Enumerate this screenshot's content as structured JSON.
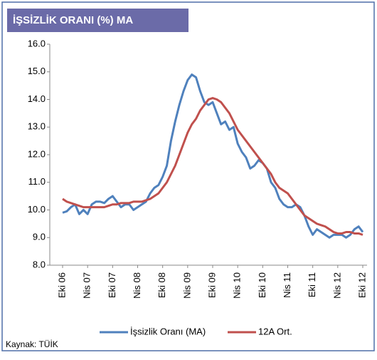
{
  "chart_data": {
    "type": "line",
    "title": "İŞSİZLİK ORANI (%) MA",
    "source": "Kaynak: TÜİK",
    "categories": [
      "Eki 06",
      null,
      null,
      null,
      null,
      null,
      "Nis 07",
      null,
      null,
      null,
      null,
      null,
      "Eki 07",
      null,
      null,
      null,
      null,
      null,
      "Nis 08",
      null,
      null,
      null,
      null,
      null,
      "Eki 08",
      null,
      null,
      null,
      null,
      null,
      "Nis 09",
      null,
      null,
      null,
      null,
      null,
      "Eki 09",
      null,
      null,
      null,
      null,
      null,
      "Nis 10",
      null,
      null,
      null,
      null,
      null,
      "Eki 10",
      null,
      null,
      null,
      null,
      null,
      "Nis 11",
      null,
      null,
      null,
      null,
      null,
      "Eki 11",
      null,
      null,
      null,
      null,
      null,
      "Nis 12",
      null,
      null,
      null,
      null,
      null,
      "Eki 12"
    ],
    "series": [
      {
        "name": "İşsizlik Oranı (MA)",
        "color": "#4f81bd",
        "values": [
          9.9,
          9.95,
          10.1,
          10.2,
          9.85,
          10.0,
          9.85,
          10.2,
          10.3,
          10.3,
          10.25,
          10.4,
          10.5,
          10.3,
          10.1,
          10.2,
          10.2,
          10.0,
          10.1,
          10.2,
          10.3,
          10.6,
          10.8,
          10.9,
          11.2,
          11.6,
          12.5,
          13.2,
          13.8,
          14.3,
          14.7,
          14.9,
          14.8,
          14.3,
          13.9,
          13.8,
          13.9,
          13.5,
          13.1,
          13.2,
          12.9,
          13.0,
          12.4,
          12.1,
          11.9,
          11.5,
          11.6,
          11.8,
          11.7,
          11.5,
          11.0,
          10.8,
          10.4,
          10.2,
          10.1,
          10.1,
          10.2,
          10.1,
          9.8,
          9.4,
          9.1,
          9.3,
          9.2,
          9.1,
          9.0,
          9.1,
          9.1,
          9.1,
          9.0,
          9.1,
          9.3,
          9.4,
          9.2
        ]
      },
      {
        "name": "12A Ort.",
        "color": "#c0504d",
        "values": [
          10.4,
          10.3,
          10.25,
          10.2,
          10.15,
          10.1,
          10.1,
          10.1,
          10.1,
          10.1,
          10.1,
          10.15,
          10.2,
          10.2,
          10.25,
          10.25,
          10.25,
          10.3,
          10.3,
          10.3,
          10.35,
          10.4,
          10.5,
          10.6,
          10.8,
          11.0,
          11.3,
          11.6,
          12.0,
          12.4,
          12.8,
          13.1,
          13.3,
          13.6,
          13.8,
          14.0,
          14.05,
          14.0,
          13.9,
          13.7,
          13.5,
          13.2,
          12.9,
          12.7,
          12.5,
          12.3,
          12.1,
          11.9,
          11.7,
          11.5,
          11.3,
          11.0,
          10.8,
          10.7,
          10.6,
          10.4,
          10.2,
          10.0,
          9.8,
          9.7,
          9.6,
          9.5,
          9.45,
          9.4,
          9.3,
          9.2,
          9.15,
          9.15,
          9.2,
          9.2,
          9.15,
          9.15,
          9.1
        ]
      }
    ],
    "ylim": [
      8,
      16
    ],
    "yticks": [
      {
        "value": 8,
        "label": "8.0"
      },
      {
        "value": 9,
        "label": "9.0"
      },
      {
        "value": 10,
        "label": "10.0"
      },
      {
        "value": 11,
        "label": "11.0"
      },
      {
        "value": 12,
        "label": "12.0"
      },
      {
        "value": 13,
        "label": "13.0"
      },
      {
        "value": 14,
        "label": "14.0"
      },
      {
        "value": 15,
        "label": "15.0"
      },
      {
        "value": 16,
        "label": "16.0"
      }
    ],
    "grid": false
  }
}
